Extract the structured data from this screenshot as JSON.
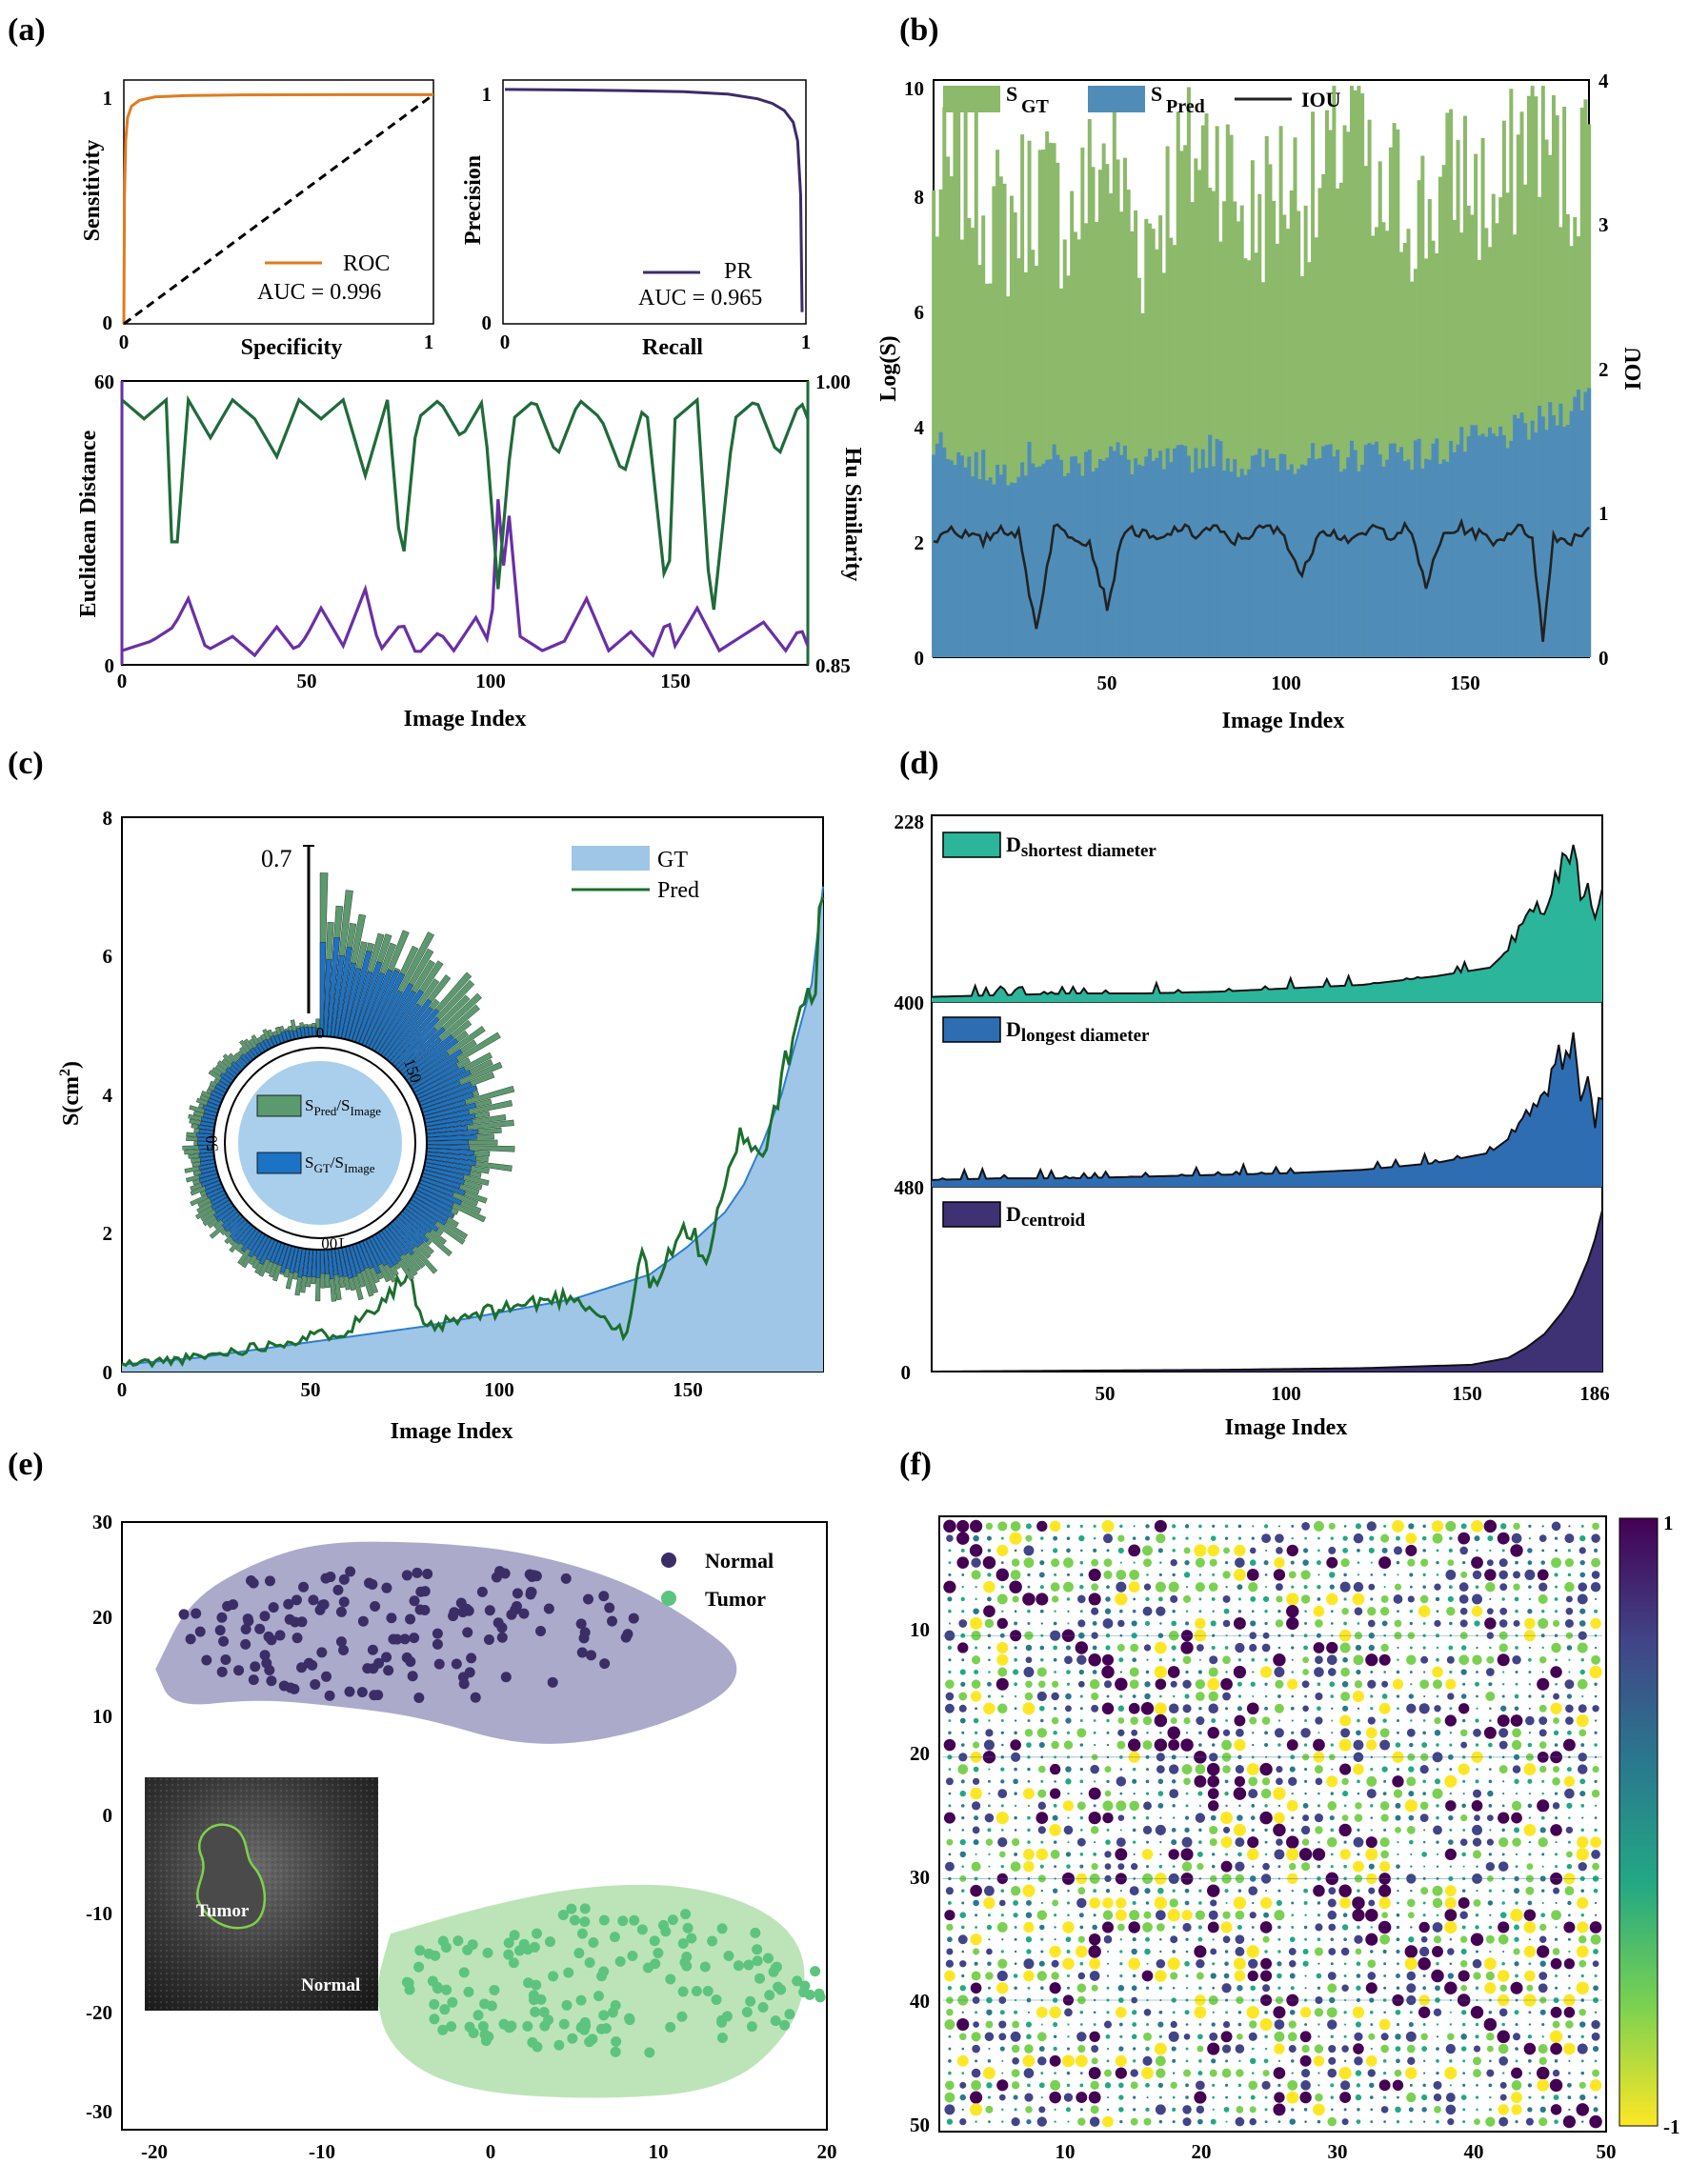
{
  "panel_labels": [
    "(a)",
    "(b)",
    "(c)",
    "(d)",
    "(e)",
    "(f)"
  ],
  "chart_data": [
    {
      "id": "a1",
      "type": "line",
      "xlabel": "Specificity",
      "ylabel": "Sensitivity",
      "xticks": [
        "0",
        "1"
      ],
      "yticks": [
        "0",
        "1"
      ],
      "xlim": [
        0,
        1
      ],
      "ylim": [
        0,
        1
      ],
      "series": [
        {
          "name": "ROC",
          "x": [
            0,
            0.002,
            0.006,
            0.012,
            0.025,
            0.05,
            0.1,
            0.2,
            0.4,
            0.7,
            1.0
          ],
          "y": [
            0,
            0.55,
            0.8,
            0.9,
            0.95,
            0.975,
            0.99,
            0.996,
            0.999,
            1.0,
            1.0
          ],
          "color": "#e07b1f"
        },
        {
          "name": "chance",
          "x": [
            0,
            1
          ],
          "y": [
            0,
            1
          ],
          "color": "#000000"
        }
      ],
      "legend": {
        "label": "ROC",
        "auc": "AUC = 0.996"
      }
    },
    {
      "id": "a2",
      "type": "line",
      "xlabel": "Recall",
      "ylabel": "Precision",
      "xticks": [
        "0",
        "1"
      ],
      "yticks": [
        "0",
        "1"
      ],
      "xlim": [
        0,
        1
      ],
      "ylim": [
        0,
        1.04
      ],
      "series": [
        {
          "name": "PR",
          "x": [
            0,
            0.2,
            0.4,
            0.6,
            0.75,
            0.85,
            0.9,
            0.94,
            0.97,
            0.985,
            0.995,
            1.0
          ],
          "y": [
            1.0,
            0.998,
            0.995,
            0.99,
            0.98,
            0.96,
            0.94,
            0.91,
            0.86,
            0.78,
            0.55,
            0.05
          ],
          "color": "#3d2b6b"
        }
      ],
      "legend": {
        "label": "PR",
        "auc": "AUC = 0.965"
      }
    },
    {
      "id": "a3",
      "type": "line",
      "xlabel": "Image Index",
      "ylabel_left": "Euclidean Distance",
      "ylabel_right": "Hu Similarity",
      "xticks": [
        "0",
        "50",
        "100",
        "150"
      ],
      "yticks_left": [
        "0",
        "60"
      ],
      "yticks_right": [
        "0.85",
        "1.00"
      ],
      "xlim": [
        0,
        186
      ],
      "ylim_left": [
        0,
        60
      ],
      "ylim_right": [
        0.85,
        1.0
      ],
      "series": [
        {
          "name": "Euclidean Distance",
          "axis": "left",
          "color": "#6a2fa5",
          "x": [
            0,
            8,
            14,
            18,
            23,
            30,
            36,
            42,
            47,
            50,
            54,
            60,
            66,
            70,
            76,
            80,
            86,
            90,
            96,
            100,
            102,
            103,
            104,
            108,
            114,
            120,
            126,
            132,
            138,
            144,
            148,
            150,
            156,
            162,
            168,
            174,
            180,
            184,
            186
          ],
          "y": [
            3,
            5,
            8,
            14,
            3,
            6,
            2,
            8,
            3,
            6,
            12,
            4,
            16,
            3,
            9,
            2,
            7,
            3,
            10,
            4,
            35,
            2,
            40,
            6,
            3,
            5,
            14,
            3,
            7,
            2,
            10,
            4,
            12,
            3,
            6,
            9,
            3,
            8,
            4
          ]
        },
        {
          "name": "Hu Similarity",
          "axis": "right",
          "color": "#1f6b3a",
          "x": [
            0,
            6,
            12,
            14,
            18,
            24,
            30,
            36,
            42,
            48,
            54,
            60,
            66,
            72,
            76,
            80,
            86,
            92,
            98,
            102,
            106,
            112,
            118,
            124,
            130,
            136,
            142,
            148,
            150,
            156,
            160,
            166,
            172,
            178,
            184,
            186
          ],
          "y": [
            0.99,
            0.98,
            0.99,
            0.89,
            0.99,
            0.97,
            0.99,
            0.98,
            0.96,
            0.99,
            0.98,
            0.99,
            0.95,
            0.99,
            0.9,
            0.98,
            0.99,
            0.97,
            0.99,
            0.89,
            0.98,
            0.99,
            0.96,
            0.99,
            0.98,
            0.95,
            0.99,
            0.88,
            0.98,
            0.99,
            0.87,
            0.98,
            0.99,
            0.96,
            0.99,
            0.98
          ]
        }
      ]
    },
    {
      "id": "b",
      "type": "bar",
      "xlabel": "Image Index",
      "ylabel_left": "Log(S)",
      "ylabel_right": "IOU",
      "xticks": [
        "50",
        "100",
        "150"
      ],
      "yticks_left": [
        "0",
        "2",
        "4",
        "6",
        "8",
        "10"
      ],
      "yticks_right": [
        "0",
        "1",
        "2",
        "3",
        "4"
      ],
      "xlim": [
        1,
        186
      ],
      "ylim_left": [
        0,
        10
      ],
      "ylim_right": [
        0,
        4
      ],
      "legend": [
        {
          "main": "S",
          "sub": "GT",
          "color": "#8cb96a"
        },
        {
          "main": "S",
          "sub": "Pred",
          "color": "#4f8db8"
        },
        {
          "main": "IOU",
          "color": "#222222"
        }
      ],
      "series": [
        {
          "name": "S_GT",
          "color": "#8cb96a",
          "x": [
            1,
            10,
            20,
            30,
            40,
            50,
            60,
            70,
            80,
            90,
            100,
            110,
            120,
            126,
            130,
            140,
            150,
            160,
            170,
            180,
            186
          ],
          "y": [
            7.8,
            8.6,
            7.4,
            8.2,
            7.6,
            8.8,
            7.2,
            8.4,
            9.0,
            7.5,
            8.3,
            7.9,
            9.8,
            7.2,
            8.1,
            7.7,
            8.5,
            7.6,
            9.6,
            8.2,
            9.0
          ]
        },
        {
          "name": "S_Pred",
          "color": "#4f8db8",
          "x": [
            1,
            10,
            20,
            30,
            40,
            50,
            60,
            70,
            80,
            90,
            100,
            110,
            120,
            130,
            140,
            150,
            160,
            170,
            180,
            186
          ],
          "y": [
            3.8,
            3.4,
            3.2,
            3.5,
            3.3,
            3.6,
            3.3,
            3.4,
            3.6,
            3.3,
            3.5,
            3.4,
            3.5,
            3.6,
            3.5,
            3.7,
            3.8,
            4.0,
            4.3,
            4.6
          ]
        },
        {
          "name": "IOU",
          "color": "#222222",
          "x": [
            1,
            5,
            10,
            15,
            20,
            25,
            30,
            35,
            40,
            45,
            50,
            55,
            60,
            65,
            70,
            75,
            80,
            85,
            90,
            95,
            100,
            105,
            110,
            115,
            120,
            125,
            130,
            135,
            140,
            145,
            150,
            155,
            160,
            165,
            170,
            173,
            176,
            180,
            186
          ],
          "y": [
            0.8,
            0.9,
            0.85,
            0.8,
            0.9,
            0.85,
            0.2,
            0.9,
            0.85,
            0.8,
            0.35,
            0.9,
            0.85,
            0.8,
            0.9,
            0.85,
            0.9,
            0.8,
            0.85,
            0.9,
            0.85,
            0.55,
            0.9,
            0.85,
            0.8,
            0.9,
            0.85,
            0.9,
            0.5,
            0.85,
            0.9,
            0.85,
            0.8,
            0.9,
            0.85,
            0.1,
            0.85,
            0.8,
            0.9
          ]
        }
      ]
    },
    {
      "id": "c",
      "type": "area",
      "xlabel": "Image Index",
      "ylabel": "S(cm",
      "ylabel_sup": "2",
      "ylabel_close": ")",
      "xticks": [
        "0",
        "50",
        "100",
        "150"
      ],
      "yticks": [
        "0",
        "2",
        "4",
        "6",
        "8"
      ],
      "xlim": [
        0,
        186
      ],
      "ylim": [
        0,
        8
      ],
      "legend": [
        {
          "name": "GT",
          "color": "#9fc6e6"
        },
        {
          "name": "Pred",
          "color": "#1b6f2d"
        }
      ],
      "series": [
        {
          "name": "GT",
          "color": "#9fc6e6",
          "x": [
            0,
            20,
            40,
            60,
            80,
            100,
            120,
            140,
            150,
            160,
            165,
            170,
            175,
            180,
            183,
            186
          ],
          "y": [
            0.1,
            0.2,
            0.35,
            0.5,
            0.65,
            0.85,
            1.05,
            1.4,
            1.8,
            2.3,
            2.7,
            3.3,
            4.0,
            5.0,
            5.6,
            7.0
          ]
        },
        {
          "name": "Pred",
          "color": "#1b6f2d",
          "x": [
            0,
            20,
            40,
            60,
            76,
            80,
            100,
            120,
            134,
            138,
            140,
            150,
            155,
            160,
            165,
            170,
            175,
            180,
            183,
            186
          ],
          "y": [
            0.1,
            0.2,
            0.4,
            0.6,
            1.4,
            0.6,
            0.9,
            1.1,
            0.5,
            1.8,
            1.2,
            2.1,
            1.6,
            2.6,
            3.5,
            3.1,
            4.2,
            5.5,
            5.2,
            7.0
          ]
        }
      ],
      "inset": {
        "type": "polar-bar",
        "rlabel": "0.7",
        "angle_ticks": [
          "0",
          "50",
          "100",
          "150"
        ],
        "legend": [
          {
            "main": "S",
            "sub1": "Pred",
            "mid": "/S",
            "sub2": "Image",
            "color": "#5b9a6e"
          },
          {
            "main": "S",
            "sub1": "GT",
            "mid": "/S",
            "sub2": "Image",
            "color": "#1c73c4"
          }
        ],
        "pred_ratio": [
          0.7,
          0.55,
          0.48,
          0.42,
          0.38,
          0.35,
          0.3,
          0.28,
          0.25,
          0.22,
          0.2,
          0.18,
          0.16,
          0.15,
          0.13,
          0.12,
          0.1,
          0.09,
          0.08,
          0.07
        ],
        "gt_ratio": [
          0.45,
          0.38,
          0.32,
          0.28,
          0.25,
          0.22,
          0.2,
          0.18,
          0.16,
          0.14,
          0.13,
          0.12,
          0.1,
          0.09,
          0.08,
          0.07,
          0.06,
          0.05,
          0.05,
          0.04
        ]
      }
    },
    {
      "id": "d",
      "type": "area",
      "xlabel": "Image Index",
      "xticks": [
        "50",
        "100",
        "150",
        "186"
      ],
      "xlim": [
        1,
        186
      ],
      "subplots": [
        {
          "label_main": "D",
          "label_sub": "shortest diameter",
          "color": "#2bb59a",
          "yticks": [
            "400",
            "228"
          ],
          "x": [
            1,
            20,
            40,
            60,
            80,
            100,
            120,
            140,
            155,
            160,
            165,
            170,
            175,
            178,
            180,
            182,
            184,
            186
          ],
          "y": [
            0.03,
            0.04,
            0.05,
            0.05,
            0.06,
            0.08,
            0.1,
            0.15,
            0.2,
            0.3,
            0.45,
            0.55,
            0.75,
            0.9,
            0.55,
            0.7,
            0.45,
            0.75
          ]
        },
        {
          "label_main": "D",
          "label_sub": "longest diameter",
          "color": "#2f6db3",
          "yticks": [
            "480"
          ],
          "x": [
            1,
            20,
            40,
            60,
            80,
            100,
            120,
            140,
            155,
            160,
            165,
            170,
            175,
            178,
            180,
            182,
            184,
            186
          ],
          "y": [
            0.04,
            0.05,
            0.05,
            0.06,
            0.07,
            0.08,
            0.1,
            0.14,
            0.2,
            0.28,
            0.4,
            0.55,
            0.8,
            0.95,
            0.5,
            0.6,
            0.35,
            0.5
          ]
        },
        {
          "label_main": "D",
          "label_sub": "centroid",
          "color": "#3e3275",
          "yticks": [
            "480",
            "0"
          ],
          "x": [
            1,
            40,
            80,
            120,
            150,
            160,
            165,
            170,
            175,
            178,
            180,
            182,
            184,
            186
          ],
          "y": [
            0.0,
            0.005,
            0.01,
            0.02,
            0.04,
            0.08,
            0.14,
            0.22,
            0.35,
            0.45,
            0.55,
            0.65,
            0.78,
            0.95
          ]
        }
      ]
    },
    {
      "id": "e",
      "type": "scatter",
      "xticks": [
        "-20",
        "-10",
        "0",
        "10",
        "20"
      ],
      "yticks": [
        "-30",
        "-20",
        "-10",
        "0",
        "10",
        "20",
        "30"
      ],
      "xlim": [
        -22,
        20
      ],
      "ylim": [
        -32,
        30
      ],
      "legend": [
        {
          "name": "Normal",
          "color": "#3b2d66"
        },
        {
          "name": "Tumor",
          "color": "#5cc47e"
        }
      ],
      "inset": {
        "labels": [
          "Tumor",
          "Normal"
        ]
      },
      "series": [
        {
          "name": "Normal",
          "color": "#3b2d66",
          "cx": -5,
          "cy": 19,
          "rx": 15,
          "ry": 8.5,
          "n": 150
        },
        {
          "name": "Tumor",
          "color": "#5cc47e",
          "cx": 7,
          "cy": -17,
          "rx": 14,
          "ry": 9,
          "n": 160
        }
      ]
    },
    {
      "id": "f",
      "type": "heatmap",
      "xticks": [
        "10",
        "20",
        "30",
        "40",
        "50"
      ],
      "yticks": [
        "10",
        "20",
        "30",
        "40",
        "50"
      ],
      "colorbar": {
        "max_label": "1",
        "min_label": "-1",
        "colors": [
          "#fde725",
          "#7ad151",
          "#22a884",
          "#2a788e",
          "#414487",
          "#440154"
        ]
      },
      "size": 50
    }
  ]
}
